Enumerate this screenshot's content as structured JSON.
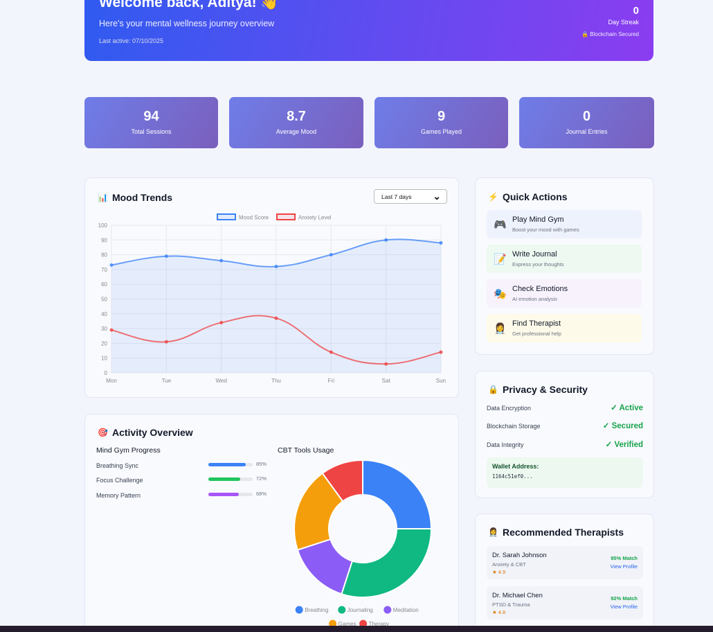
{
  "hero": {
    "title": "Welcome back, Aditya! 👋",
    "subtitle": "Here's your mental wellness journey overview",
    "last_active": "Last active: 07/10/2025",
    "streak_value": "0",
    "streak_label": "Day Streak",
    "secured": "🔒 Blockchain Secured"
  },
  "stats": [
    {
      "value": "94",
      "label": "Total Sessions"
    },
    {
      "value": "8.7",
      "label": "Average Mood"
    },
    {
      "value": "9",
      "label": "Games Played"
    },
    {
      "value": "0",
      "label": "Journal Entries"
    }
  ],
  "mood": {
    "title": "Mood Trends",
    "icon": "📊",
    "range_selected": "Last 7 days"
  },
  "chart_data": [
    {
      "type": "line",
      "title": "",
      "x": [
        "Mon",
        "Tue",
        "Wed",
        "Thu",
        "Fri",
        "Sat",
        "Sun"
      ],
      "ylim": [
        0,
        100
      ],
      "yticks": [
        0,
        10,
        20,
        30,
        40,
        50,
        60,
        70,
        80,
        90,
        100
      ],
      "grid": true,
      "legend": "top",
      "series": [
        {
          "name": "Mood Score",
          "values": [
            73,
            79,
            76,
            72,
            80,
            90,
            88
          ],
          "color": "#3b82f6",
          "fill": true
        },
        {
          "name": "Anxiety Level",
          "values": [
            29,
            21,
            34,
            37,
            14,
            6,
            14
          ],
          "color": "#ef4444",
          "fill": false
        }
      ]
    },
    {
      "type": "pie",
      "title": "CBT Tools Usage",
      "legend": "bottom",
      "categories": [
        "Breathing",
        "Journaling",
        "Meditation",
        "Games",
        "Therapy"
      ],
      "values": [
        25,
        30,
        15,
        20,
        10
      ],
      "colors": [
        "#3b82f6",
        "#10b981",
        "#8b5cf6",
        "#f59e0b",
        "#ef4444"
      ]
    }
  ],
  "activity": {
    "title": "Activity Overview",
    "icon": "🎯",
    "gym_title": "Mind Gym Progress",
    "cbt_title": "CBT Tools Usage",
    "gym": [
      {
        "label": "Breathing Sync",
        "pct": 85,
        "pct_text": "85%",
        "color": "#3b82f6"
      },
      {
        "label": "Focus Challenge",
        "pct": 72,
        "pct_text": "72%",
        "color": "#22c55e"
      },
      {
        "label": "Memory Pattern",
        "pct": 68,
        "pct_text": "68%",
        "color": "#a855f7"
      }
    ]
  },
  "quick": {
    "title": "Quick Actions",
    "icon": "⚡",
    "items": [
      {
        "icon": "🎮",
        "title": "Play Mind Gym",
        "sub": "Boost your mood with games",
        "bg": "#eef2fd"
      },
      {
        "icon": "📝",
        "title": "Write Journal",
        "sub": "Express your thoughts",
        "bg": "#edf9f1"
      },
      {
        "icon": "🎭",
        "title": "Check Emotions",
        "sub": "AI emotion analysis",
        "bg": "#f8f2fd"
      },
      {
        "icon": "👩‍⚕️",
        "title": "Find Therapist",
        "sub": "Get professional help",
        "bg": "#fdfae9"
      }
    ]
  },
  "privacy": {
    "title": "Privacy & Security",
    "icon": "🔒",
    "rows": [
      {
        "label": "Data Encryption",
        "value": "✓ Active"
      },
      {
        "label": "Blockchain Storage",
        "value": "✓ Secured"
      },
      {
        "label": "Data Integrity",
        "value": "✓ Verified"
      }
    ],
    "wallet_label": "Wallet Address:",
    "wallet_value": "1164c51ef0..."
  },
  "therapists": {
    "title": "Recommended Therapists",
    "icon": "👩‍⚕️",
    "items": [
      {
        "name": "Dr. Sarah Johnson",
        "spec": "Anxiety & CBT",
        "rating": "★ 4.9",
        "match": "95% Match",
        "link": "View Profile"
      },
      {
        "name": "Dr. Michael Chen",
        "spec": "PTSD & Trauma",
        "rating": "★ 4.8",
        "match": "92% Match",
        "link": "View Profile"
      }
    ]
  }
}
